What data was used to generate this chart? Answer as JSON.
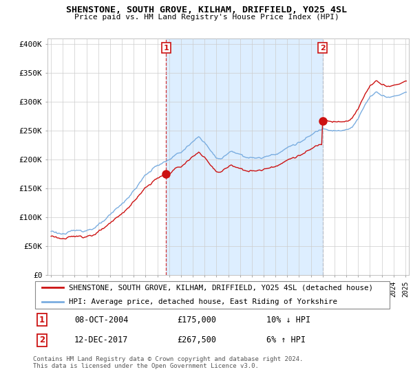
{
  "title": "SHENSTONE, SOUTH GROVE, KILHAM, DRIFFIELD, YO25 4SL",
  "subtitle": "Price paid vs. HM Land Registry's House Price Index (HPI)",
  "legend_line1": "SHENSTONE, SOUTH GROVE, KILHAM, DRIFFIELD, YO25 4SL (detached house)",
  "legend_line2": "HPI: Average price, detached house, East Riding of Yorkshire",
  "annotation1_date": "08-OCT-2004",
  "annotation1_price": "£175,000",
  "annotation1_pct": "10% ↓ HPI",
  "annotation2_date": "12-DEC-2017",
  "annotation2_price": "£267,500",
  "annotation2_pct": "6% ↑ HPI",
  "footer": "Contains HM Land Registry data © Crown copyright and database right 2024.\nThis data is licensed under the Open Government Licence v3.0.",
  "marker1_year": 2004.79,
  "marker1_price": 175000,
  "marker2_year": 2017.96,
  "marker2_price": 267500,
  "hpi_color": "#7aade0",
  "price_color": "#cc1111",
  "marker_box_color": "#cc1111",
  "shade_color": "#ddeeff",
  "ylim_min": 0,
  "ylim_max": 410000,
  "xlim_min": 1994.7,
  "xlim_max": 2025.3,
  "background_color": "#ffffff",
  "grid_color": "#cccccc"
}
